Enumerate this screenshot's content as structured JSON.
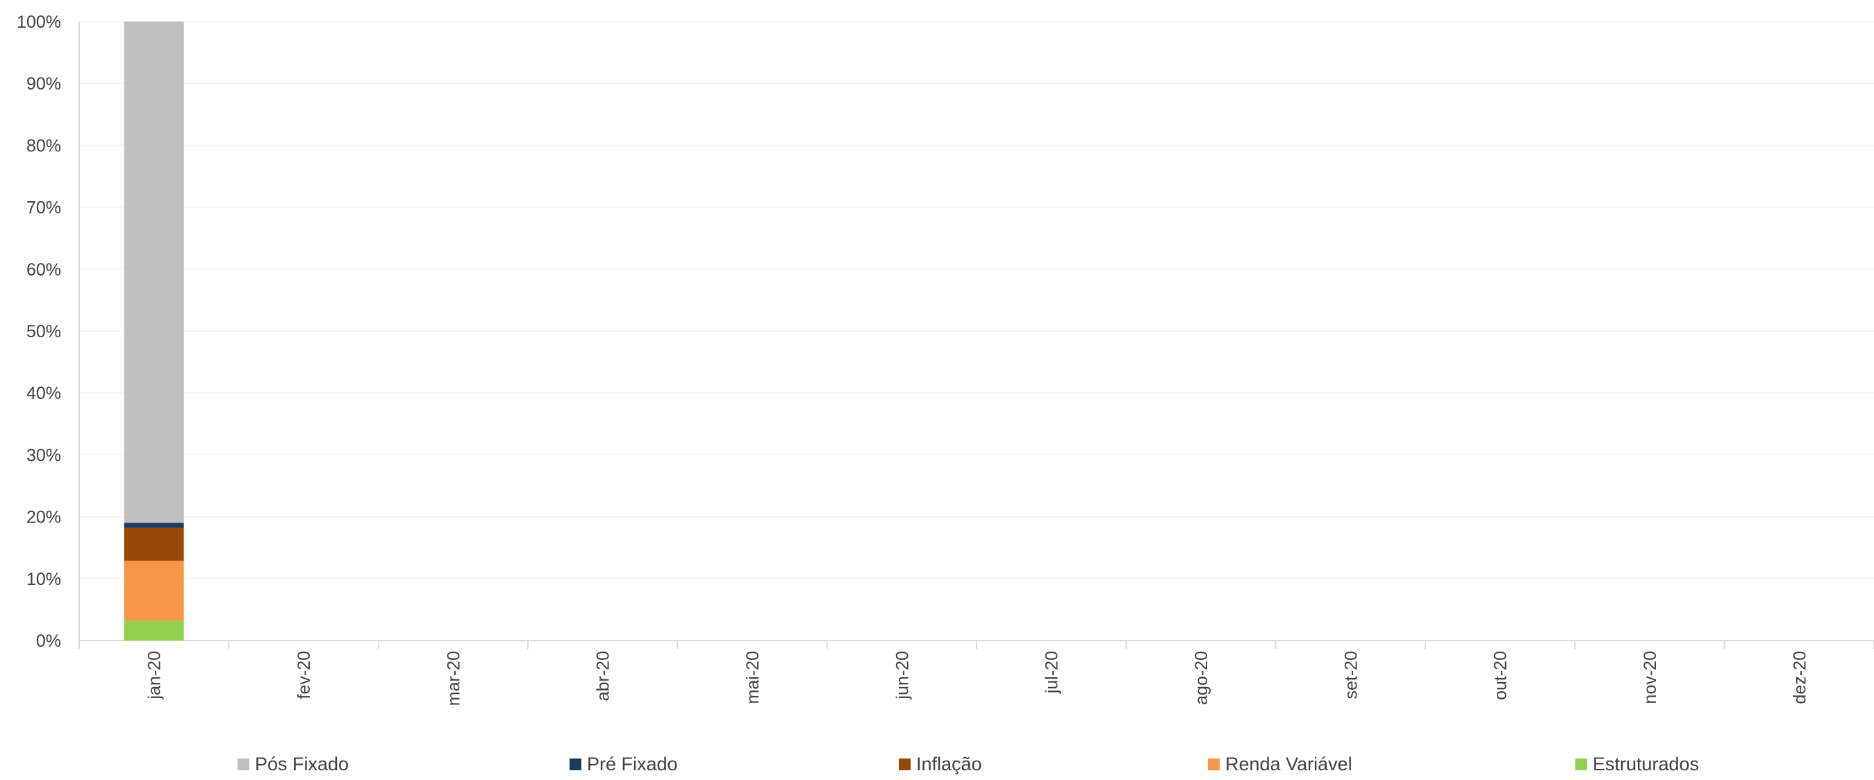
{
  "chart_data": {
    "type": "bar",
    "stacked": true,
    "categories": [
      "jan-20",
      "fev-20",
      "mar-20",
      "abr-20",
      "mai-20",
      "jun-20",
      "jul-20",
      "ago-20",
      "set-20",
      "out-20",
      "nov-20",
      "dez-20"
    ],
    "series": [
      {
        "name": "Estruturados",
        "color": "#92d050",
        "values": [
          3.2,
          null,
          null,
          null,
          null,
          null,
          null,
          null,
          null,
          null,
          null,
          null
        ]
      },
      {
        "name": "Renda Variável",
        "color": "#f79646",
        "values": [
          9.7,
          null,
          null,
          null,
          null,
          null,
          null,
          null,
          null,
          null,
          null,
          null
        ]
      },
      {
        "name": "Inflação",
        "color": "#974706",
        "values": [
          5.3,
          null,
          null,
          null,
          null,
          null,
          null,
          null,
          null,
          null,
          null,
          null
        ]
      },
      {
        "name": "Pré Fixado",
        "color": "#1f3864",
        "values": [
          0.8,
          null,
          null,
          null,
          null,
          null,
          null,
          null,
          null,
          null,
          null,
          null
        ]
      },
      {
        "name": "Pós Fixado",
        "color": "#bfbfbf",
        "values": [
          81.0,
          null,
          null,
          null,
          null,
          null,
          null,
          null,
          null,
          null,
          null,
          null
        ]
      }
    ],
    "y_ticks": [
      "0%",
      "10%",
      "20%",
      "30%",
      "40%",
      "50%",
      "60%",
      "70%",
      "80%",
      "90%",
      "100%"
    ],
    "ylim": [
      0,
      100
    ],
    "grid": true,
    "legend_position": "bottom",
    "legend_order": [
      "Pós Fixado",
      "Pré Fixado",
      "Inflação",
      "Renda Variável",
      "Estruturados"
    ]
  }
}
